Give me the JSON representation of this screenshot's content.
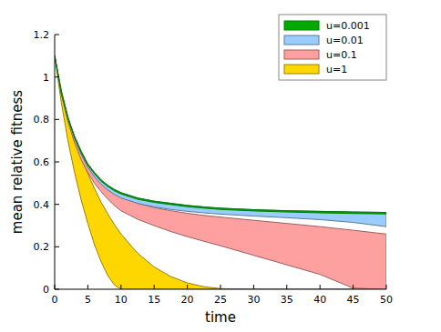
{
  "chart_data": {
    "type": "band",
    "x_label": "time",
    "y_label": "mean relative fitness",
    "xlim": [
      0,
      50
    ],
    "ylim": [
      0,
      1.2
    ],
    "xticks": [
      0,
      5,
      10,
      15,
      20,
      25,
      30,
      35,
      40,
      45,
      50
    ],
    "yticks": [
      0,
      0.2,
      0.4,
      0.6,
      0.8,
      1,
      1.2
    ],
    "grid": false,
    "legend": "top-right",
    "x": [
      0,
      1,
      2,
      3,
      4,
      5,
      6,
      7,
      8,
      9,
      10,
      12.5,
      15,
      17.5,
      20,
      22.5,
      25,
      30,
      35,
      40,
      45,
      50
    ],
    "series": [
      {
        "name": "u=0.001",
        "color": "#00aa00",
        "high": [
          1.1,
          0.93,
          0.81,
          0.72,
          0.65,
          0.59,
          0.55,
          0.515,
          0.49,
          0.47,
          0.455,
          0.43,
          0.415,
          0.405,
          0.395,
          0.388,
          0.382,
          0.375,
          0.37,
          0.367,
          0.364,
          0.362
        ],
        "low": [
          1.1,
          0.925,
          0.805,
          0.715,
          0.644,
          0.584,
          0.544,
          0.509,
          0.484,
          0.464,
          0.449,
          0.424,
          0.409,
          0.399,
          0.389,
          0.382,
          0.376,
          0.369,
          0.364,
          0.36,
          0.357,
          0.355
        ]
      },
      {
        "name": "u=0.01",
        "color": "#99ccff",
        "high": [
          1.1,
          0.93,
          0.81,
          0.72,
          0.65,
          0.59,
          0.55,
          0.515,
          0.49,
          0.47,
          0.455,
          0.43,
          0.415,
          0.405,
          0.395,
          0.388,
          0.382,
          0.375,
          0.37,
          0.367,
          0.364,
          0.362
        ],
        "low": [
          1.1,
          0.92,
          0.8,
          0.71,
          0.635,
          0.575,
          0.53,
          0.495,
          0.468,
          0.447,
          0.43,
          0.405,
          0.388,
          0.376,
          0.367,
          0.36,
          0.354,
          0.345,
          0.337,
          0.328,
          0.315,
          0.295
        ]
      },
      {
        "name": "u=0.1",
        "color": "#ffa0a0",
        "high": [
          1.1,
          0.93,
          0.805,
          0.715,
          0.64,
          0.58,
          0.535,
          0.5,
          0.472,
          0.45,
          0.432,
          0.405,
          0.385,
          0.37,
          0.358,
          0.348,
          0.34,
          0.325,
          0.31,
          0.295,
          0.278,
          0.26
        ],
        "low": [
          1.1,
          0.92,
          0.79,
          0.69,
          0.61,
          0.55,
          0.5,
          0.46,
          0.425,
          0.395,
          0.37,
          0.33,
          0.3,
          0.272,
          0.248,
          0.226,
          0.205,
          0.16,
          0.115,
          0.07,
          0.005,
          0
        ]
      },
      {
        "name": "u=1",
        "color": "#ffd700",
        "high": [
          1.1,
          0.94,
          0.81,
          0.71,
          0.62,
          0.545,
          0.475,
          0.41,
          0.355,
          0.305,
          0.26,
          0.17,
          0.105,
          0.06,
          0.03,
          0.012,
          0.003,
          0,
          0,
          0,
          0,
          0
        ],
        "low": [
          1.1,
          0.88,
          0.7,
          0.55,
          0.42,
          0.31,
          0.21,
          0.13,
          0.065,
          0.02,
          0,
          0,
          0,
          0,
          0,
          0,
          0,
          0,
          0,
          0,
          0,
          0
        ]
      }
    ]
  }
}
